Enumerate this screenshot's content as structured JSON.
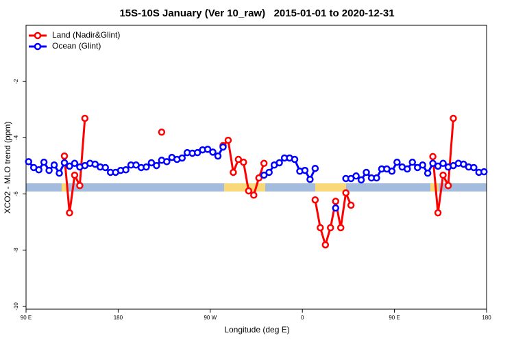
{
  "chart_data": {
    "type": "line",
    "title": "15S-10S January (Ver 10_raw)   2015-01-01 to 2020-12-31",
    "x_label": "Longitude (deg E)",
    "y_label": "XCO2 - MLO trend (ppm)",
    "xlim": [
      90,
      540
    ],
    "xticks": [
      {
        "value": 90,
        "label": "90 E"
      },
      180,
      {
        "value": 270,
        "label": "90 W"
      },
      {
        "value": 360,
        "label": "0"
      },
      {
        "value": 450,
        "label": "90 E"
      },
      {
        "value": 540,
        "label": "180"
      }
    ],
    "ylim": [
      -10,
      0
    ],
    "yticks": [
      -10,
      -8,
      -6,
      -4,
      -2
    ],
    "grid": false,
    "legend": "top-left",
    "x": [
      92.5,
      97.5,
      102.5,
      107.5,
      112.5,
      117.5,
      122.5,
      127.5,
      132.5,
      137.5,
      142.5,
      147.5,
      152.5,
      157.5,
      162.5,
      167.5,
      172.5,
      177.5,
      182.5,
      187.5,
      192.5,
      197.5,
      202.5,
      207.5,
      212.5,
      217.5,
      222.5,
      227.5,
      232.5,
      237.5,
      242.5,
      247.5,
      252.5,
      257.5,
      262.5,
      267.5,
      272.5,
      277.5,
      282.5,
      287.5,
      292.5,
      297.5,
      302.5,
      307.5,
      312.5,
      317.5,
      322.5,
      327.5,
      332.5,
      337.5,
      342.5,
      347.5,
      352.5,
      357.5,
      362.5,
      367.5,
      372.5,
      377.5,
      382.5,
      387.5,
      392.5,
      397.5,
      402.5,
      407.5,
      412.5,
      417.5,
      422.5,
      427.5,
      432.5,
      437.5,
      442.5,
      447.5,
      452.5,
      457.5,
      462.5,
      467.5,
      472.5,
      477.5,
      482.5,
      487.5,
      492.5,
      497.5,
      502.5,
      507.5,
      512.5,
      517.5,
      522.5,
      527.5,
      532.5,
      537.5
    ],
    "series": [
      {
        "name": "Land (Nadir&Glint)",
        "color": "#ff0000",
        "values": [
          null,
          null,
          null,
          null,
          null,
          null,
          null,
          -4.65,
          -6.67,
          -5.33,
          -5.7,
          -3.31,
          null,
          null,
          null,
          null,
          null,
          null,
          null,
          null,
          null,
          null,
          null,
          null,
          null,
          null,
          -3.8,
          null,
          null,
          null,
          null,
          null,
          null,
          null,
          null,
          null,
          null,
          null,
          -4.28,
          -4.09,
          -5.23,
          -4.77,
          -4.87,
          -5.89,
          -6.04,
          -5.43,
          -4.91,
          null,
          null,
          null,
          null,
          null,
          null,
          null,
          null,
          null,
          -6.21,
          -7.2,
          -7.81,
          -7.2,
          -6.26,
          -7.2,
          -5.96,
          -6.4,
          null,
          null,
          null,
          null,
          null,
          null,
          null,
          null,
          null,
          null,
          null,
          null,
          null,
          null,
          null,
          -4.67,
          -6.67,
          -5.33,
          -5.7,
          -3.31,
          null,
          null,
          null,
          null,
          null,
          null
        ]
      },
      {
        "name": "Ocean (Glint)",
        "color": "#0000ff",
        "values": [
          -4.85,
          -5.06,
          -5.14,
          -4.87,
          -5.16,
          -4.97,
          -5.26,
          -4.89,
          -5.01,
          -4.91,
          -5.04,
          -4.99,
          -4.91,
          -4.94,
          -5.04,
          -5.06,
          -5.23,
          -5.23,
          -5.16,
          -5.14,
          -4.97,
          -4.97,
          -5.06,
          -5.04,
          -4.89,
          -4.99,
          -4.8,
          -4.85,
          -4.7,
          -4.77,
          -4.72,
          -4.53,
          -4.55,
          -4.53,
          -4.43,
          -4.41,
          -4.51,
          -4.65,
          -4.33,
          null,
          null,
          null,
          null,
          null,
          null,
          null,
          -5.33,
          -5.23,
          -4.97,
          -4.89,
          -4.72,
          -4.72,
          -4.77,
          -5.19,
          -5.16,
          -5.48,
          -5.09,
          null,
          null,
          null,
          -6.5,
          null,
          -5.45,
          -5.45,
          -5.36,
          -5.5,
          -5.23,
          -5.43,
          -5.43,
          -5.11,
          -5.11,
          -5.19,
          -4.87,
          -5.04,
          -5.11,
          -4.87,
          -5.06,
          -4.97,
          -5.26,
          -4.91,
          -5.01,
          -4.91,
          -5.04,
          -4.99,
          -4.91,
          -4.94,
          -5.04,
          -5.06,
          -5.23,
          -5.21
        ]
      }
    ]
  }
}
